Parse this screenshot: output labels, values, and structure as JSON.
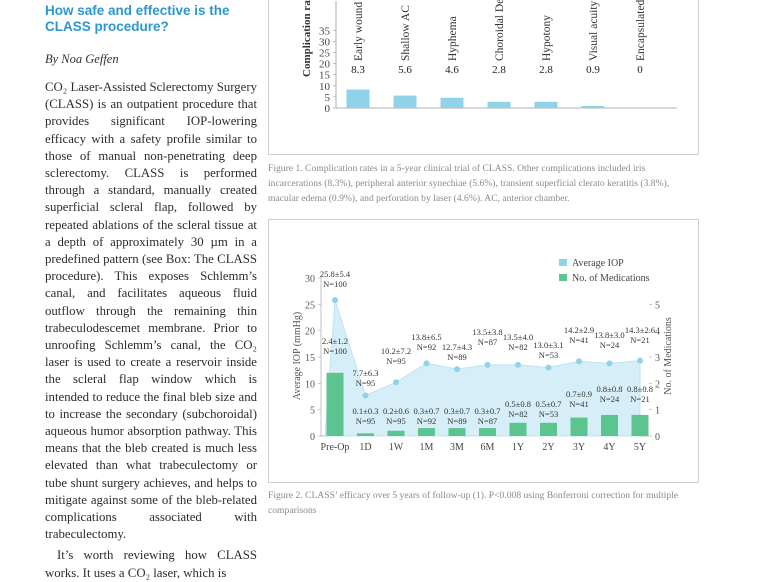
{
  "article": {
    "title": "How safe and effective is the CLASS procedure?",
    "byline": "By Noa Geffen",
    "paragraphs": [
      "CO₂ Laser-Assisted Sclerectomy Surgery (CLASS) is an outpatient procedure that provides significant IOP-lowering efficacy with a safety profile similar to those of manual non-penetrating deep sclerectomy. CLASS is performed through a standard, manually created superficial scleral flap, followed by repeated ablations of the scleral tissue at a depth of approximately 30 µm in a predefined pattern (see Box: The CLASS procedure). This exposes Schlemm’s canal, and facilitates aqueous fluid outflow through the remaining thin trabeculodescemet membrane. Prior to unroofing Schlemm’s canal, the CO₂ laser is used to create a reservoir inside the scleral flap window which is intended to reduce the final bleb size and to increase the secondary (subchoroidal) aqueous humor absorption pathway. This means that the bleb created is much less elevated than what trabeculectomy or tube shunt surgery achieves, and helps to mitigate against some of the bleb-related complications associated with trabeculectomy.",
      "It’s worth reviewing how CLASS works. It uses a CO₂ laser, which is"
    ]
  },
  "figure1": {
    "caption": "Figure 1. Complication rates in a 5-year clinical trial of CLASS. Other complications included iris incarcerations (8.3%), peripheral anterior synechiae (5.6%), transient superficial clerato keratitis (3.8%), macular edema (0.9%), and perforation by laser (4.6%). AC, anterior chamber."
  },
  "figure2": {
    "caption": "Figure 2. CLASS’ efficacy over 5 years of follow-up (1). P<0.008 using Bonferroni correction for multiple comparisons"
  },
  "colors": {
    "title": "#2a98cf",
    "iop": "#8fd3ea",
    "meds": "#5cc48e"
  },
  "chart_data": [
    {
      "type": "bar",
      "ylabel": "Complication rat",
      "ylim": [
        0,
        35
      ],
      "yticks": [
        0,
        5,
        10,
        15,
        20,
        25,
        30,
        35
      ],
      "categories": [
        "Early wound",
        "Shallow AC",
        "Hyphema",
        "Choroidal Detach",
        "Hypotony",
        "Visual acuity reduc",
        "Encapsulated Bleb"
      ],
      "values": [
        8.3,
        5.6,
        4.6,
        2.8,
        2.8,
        0.9,
        0
      ],
      "labels": [
        "8.3",
        "5.6",
        "4.6",
        "2.8",
        "2.8",
        "0.9",
        "0"
      ]
    },
    {
      "type": "bar",
      "categories": [
        "Pre-Op",
        "1D",
        "1W",
        "1M",
        "3M",
        "6M",
        "1Y",
        "2Y",
        "3Y",
        "4Y",
        "5Y"
      ],
      "ylabel": "Average IOP (mmHg)",
      "y2label": "No. of Medications",
      "ylim": [
        0,
        30
      ],
      "y2lim": [
        0,
        6
      ],
      "yticks": [
        0,
        5,
        10,
        15,
        20,
        25,
        30
      ],
      "y2ticks": [
        0,
        1,
        2,
        3,
        4,
        5
      ],
      "legend": [
        "Average IOP",
        "No. of Medications"
      ],
      "series": [
        {
          "name": "Average IOP",
          "values": [
            25.8,
            7.7,
            10.2,
            13.8,
            12.7,
            13.5,
            13.5,
            13.0,
            14.2,
            13.8,
            14.3
          ],
          "labels": [
            "25.8±5.4\nN=100",
            "7.7±6.3\nN=95",
            "10.2±7.2\nN=95",
            "13.8±6.5\nN=92",
            "12.7±4.3\nN=89",
            "13.5±3.8\nN=87",
            "13.5±4.0\nN=82",
            "13.0±3.1\nN=53",
            "14.2±2.9\nN=41",
            "13.8±3.0\nN=24",
            "14.3±2.6\nN=21"
          ]
        },
        {
          "name": "No. of Medications",
          "values": [
            2.4,
            0.1,
            0.2,
            0.3,
            0.3,
            0.3,
            0.5,
            0.5,
            0.7,
            0.8,
            0.8
          ],
          "labels": [
            "2.4±1.2\nN=100",
            "0.1±0.3\nN=95",
            "0.2±0.6\nN=95",
            "0.3±0.7\nN=92",
            "0.3±0.7\nN=89",
            "0.3±0.7\nN=87",
            "0.5±0.8\nN=82",
            "0.5±0.7\nN=53",
            "0.7±0.9\nN=41",
            "0.8±0.8\nN=24",
            "0.8±0.8\nN=21"
          ]
        }
      ]
    }
  ]
}
